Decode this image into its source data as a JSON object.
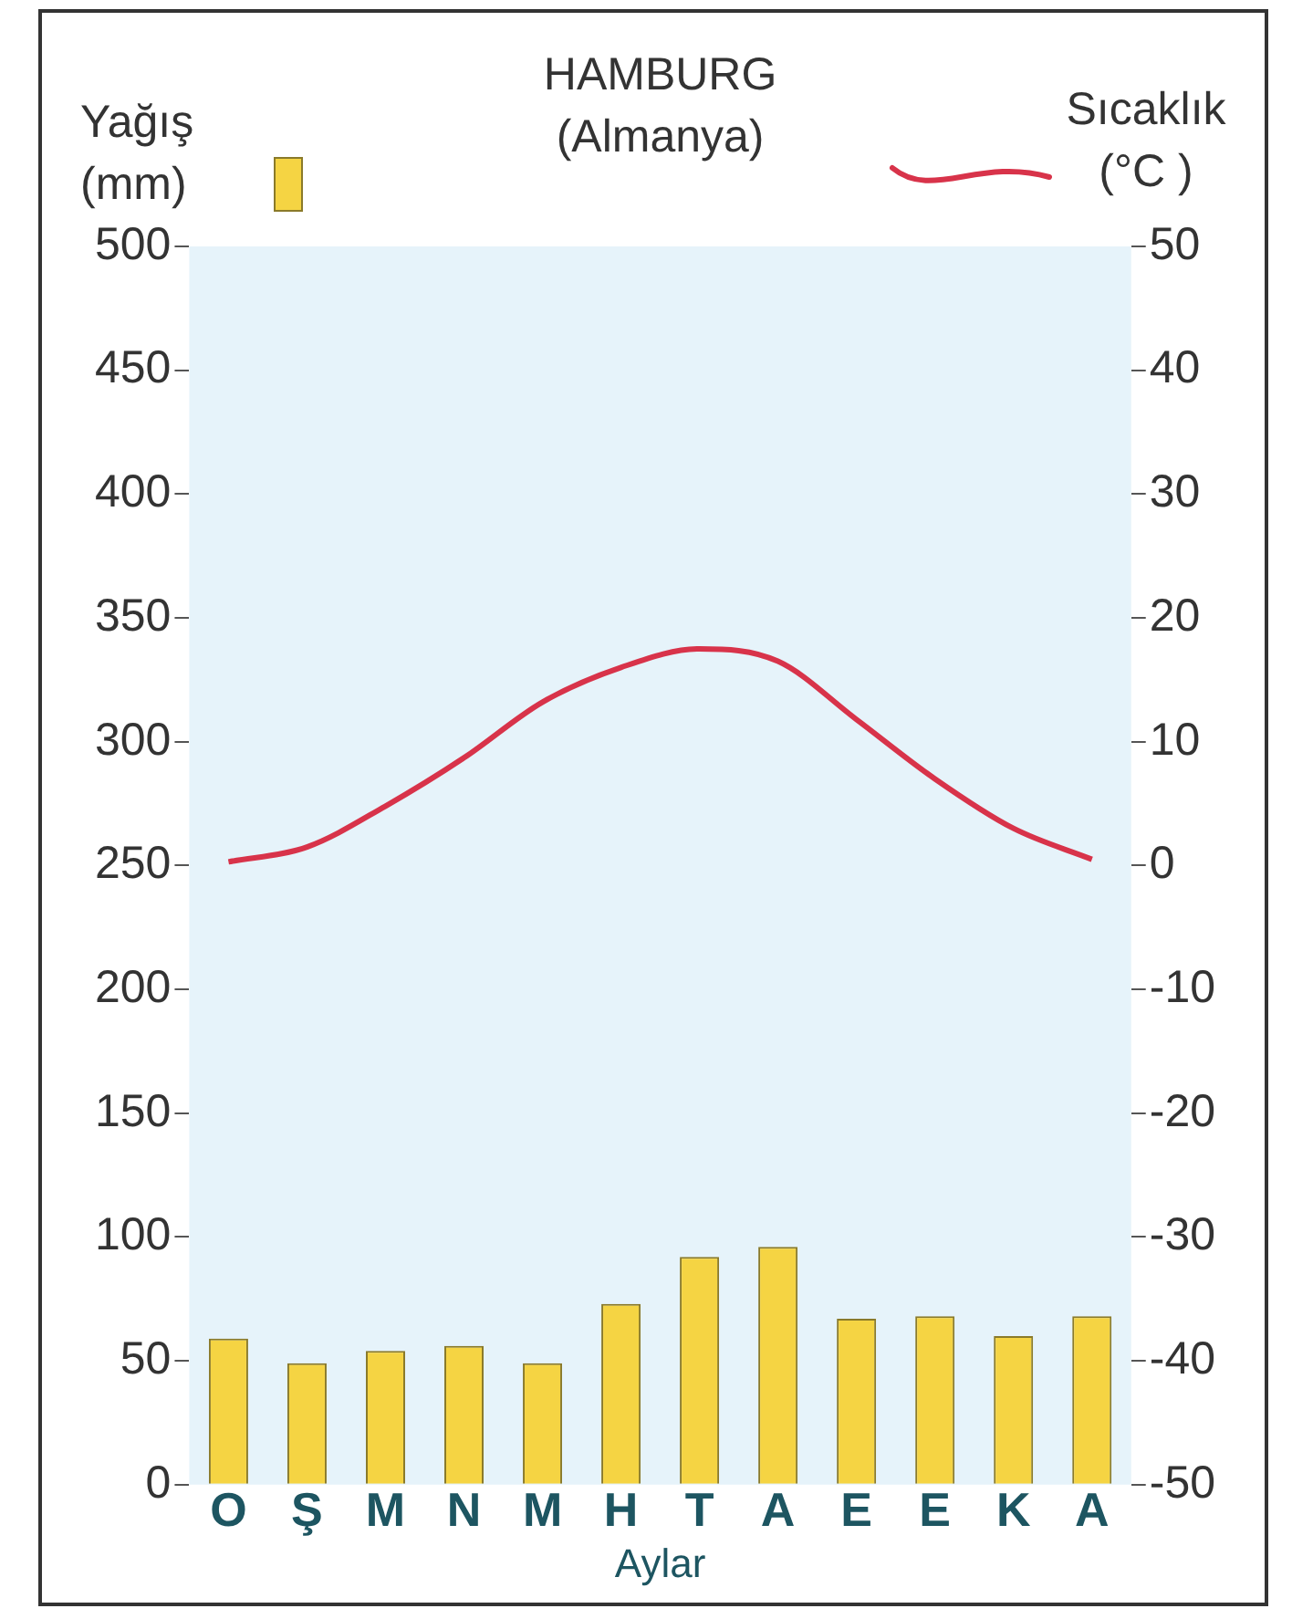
{
  "chart_data": {
    "type": "bar",
    "title": "HAMBURG\n(Almanya)",
    "ylabel": "Yağış\n(mm)",
    "y2label": "Sıcaklık\n(°C )",
    "xlabel": "Aylar",
    "categories": [
      "O",
      "Ş",
      "M",
      "N",
      "M",
      "H",
      "T",
      "A",
      "E",
      "E",
      "K",
      "A"
    ],
    "series": [
      {
        "color": "#f5d443",
        "values": [
          59,
          49,
          54,
          56,
          49,
          73,
          92,
          96,
          67,
          68,
          60,
          68
        ]
      },
      {
        "type": "line",
        "axis": "y2",
        "color": "#d8334a",
        "values": [
          0.3,
          1.5,
          4.8,
          8.7,
          13.2,
          16,
          17.5,
          16.5,
          11.8,
          7,
          3,
          0.5
        ]
      }
    ],
    "ylim": [
      0,
      500
    ],
    "yticks": [
      0,
      50,
      100,
      150,
      200,
      250,
      300,
      350,
      400,
      450,
      500
    ],
    "y2lim": [
      -50,
      50
    ],
    "y2ticks": [
      -50,
      -40,
      -30,
      -20,
      -10,
      0,
      10,
      20,
      30,
      40,
      50
    ],
    "grid": false,
    "marker": "none",
    "line_style": "solid"
  }
}
